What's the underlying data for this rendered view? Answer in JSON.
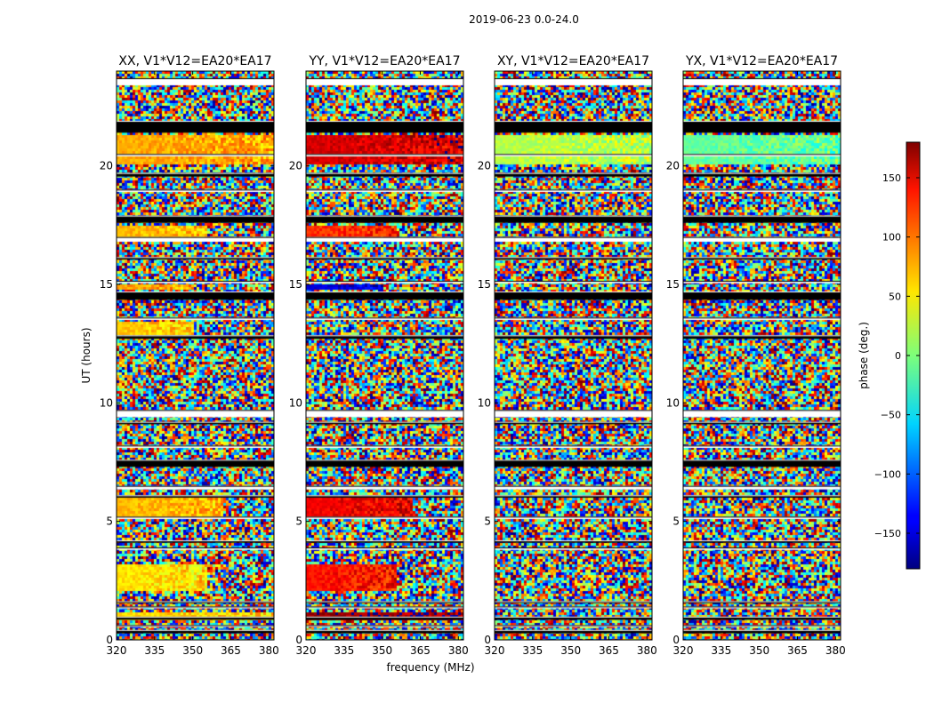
{
  "figure": {
    "suptitle": "2019-06-23 0.0-24.0"
  },
  "chart_data": {
    "type": "heatmap",
    "description_free": true,
    "xlabel": "frequency (MHz)",
    "ylabel": "UT (hours)",
    "xlim": [
      320,
      382
    ],
    "ylim": [
      0,
      24
    ],
    "xticks": [
      320,
      335,
      350,
      365,
      380
    ],
    "yticks": [
      0,
      5,
      10,
      15,
      20
    ],
    "panels": [
      {
        "title": "XX, V1*V12=EA20*EA17",
        "polarization": "XX"
      },
      {
        "title": "YY, V1*V12=EA20*EA17",
        "polarization": "YY"
      },
      {
        "title": "XY, V1*V12=EA20*EA17",
        "polarization": "XY"
      },
      {
        "title": "YX, V1*V12=EA20*EA17",
        "polarization": "YX"
      }
    ],
    "colorbar": {
      "label": "phase (deg.)",
      "range": [
        -180,
        180
      ],
      "ticks": [
        150,
        100,
        50,
        0,
        -50,
        -100,
        -150
      ],
      "tick_labels": [
        "150",
        "100",
        "50",
        "0",
        "−50",
        "−100",
        "−150"
      ],
      "colormap": "jet"
    },
    "flagged_ut_bands": [
      [
        0.28,
        0.42
      ],
      [
        0.55,
        0.62
      ],
      [
        0.85,
        0.98
      ],
      [
        1.33,
        1.41
      ],
      [
        1.55,
        1.63
      ],
      [
        3.8,
        3.9
      ],
      [
        4.1,
        4.2
      ],
      [
        5.1,
        5.2
      ],
      [
        6.0,
        6.1
      ],
      [
        6.35,
        6.5
      ],
      [
        7.3,
        7.6
      ],
      [
        8.1,
        8.2
      ],
      [
        9.1,
        9.2
      ],
      [
        9.4,
        9.7
      ],
      [
        12.7,
        12.85
      ],
      [
        13.5,
        13.6
      ],
      [
        14.35,
        14.7
      ],
      [
        15.05,
        15.15
      ],
      [
        16.05,
        16.15
      ],
      [
        16.8,
        17.0
      ],
      [
        17.6,
        17.9
      ],
      [
        18.9,
        19.0
      ],
      [
        19.55,
        19.7
      ],
      [
        20.4,
        20.5
      ],
      [
        21.4,
        21.9
      ],
      [
        23.4,
        23.7
      ]
    ],
    "coherent_phase_regions": [
      {
        "panel": "XX",
        "ut": [
          0.9,
          1.2
        ],
        "freq": [
          320,
          382
        ],
        "phase": 60
      },
      {
        "panel": "XX",
        "ut": [
          2.1,
          3.2
        ],
        "freq": [
          320,
          355
        ],
        "phase": 55
      },
      {
        "panel": "XX",
        "ut": [
          5.2,
          6.0
        ],
        "freq": [
          320,
          362
        ],
        "phase": 70
      },
      {
        "panel": "XX",
        "ut": [
          12.9,
          13.5
        ],
        "freq": [
          320,
          350
        ],
        "phase": 65
      },
      {
        "panel": "XX",
        "ut": [
          14.8,
          15.1
        ],
        "freq": [
          320,
          350
        ],
        "phase": 80
      },
      {
        "panel": "XX",
        "ut": [
          17.0,
          17.5
        ],
        "freq": [
          320,
          355
        ],
        "phase": 70
      },
      {
        "panel": "XX",
        "ut": [
          20.1,
          21.4
        ],
        "freq": [
          320,
          382
        ],
        "phase": 75
      },
      {
        "panel": "YY",
        "ut": [
          0.9,
          1.2
        ],
        "freq": [
          320,
          382
        ],
        "phase": 170
      },
      {
        "panel": "YY",
        "ut": [
          2.1,
          3.2
        ],
        "freq": [
          320,
          355
        ],
        "phase": 130
      },
      {
        "panel": "YY",
        "ut": [
          5.2,
          6.0
        ],
        "freq": [
          320,
          362
        ],
        "phase": 140
      },
      {
        "panel": "YY",
        "ut": [
          14.8,
          15.1
        ],
        "freq": [
          320,
          350
        ],
        "phase": -150
      },
      {
        "panel": "YY",
        "ut": [
          17.0,
          17.5
        ],
        "freq": [
          320,
          355
        ],
        "phase": 120
      },
      {
        "panel": "YY",
        "ut": [
          20.1,
          21.4
        ],
        "freq": [
          320,
          382
        ],
        "phase": 150
      },
      {
        "panel": "XY",
        "ut": [
          20.1,
          21.4
        ],
        "freq": [
          320,
          382
        ],
        "phase": 20
      },
      {
        "panel": "YX",
        "ut": [
          20.1,
          21.4
        ],
        "freq": [
          320,
          382
        ],
        "phase": -10
      }
    ]
  }
}
